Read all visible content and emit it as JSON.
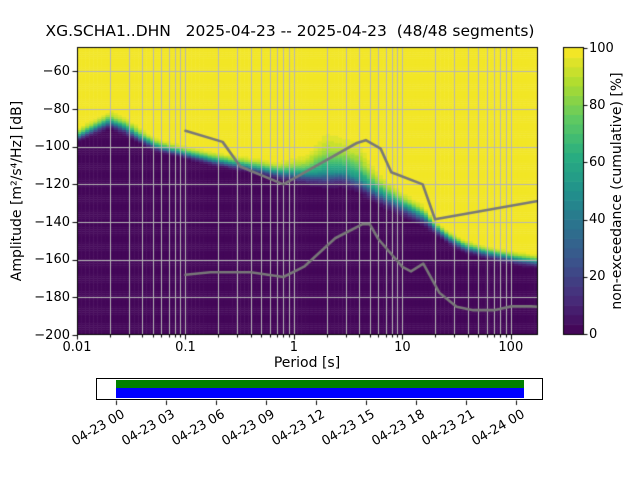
{
  "title": {
    "text": "XG.SCHA1..DHN   2025-04-23 -- 2025-04-23  (48/48 segments)",
    "station": "XG.SCHA1..DHN",
    "date_range": "2025-04-23 -- 2025-04-23",
    "segments": "48/48 segments"
  },
  "axes": {
    "xlabel": "Period [s]",
    "ylabel": "Amplitude [m²/s⁴/Hz] [dB]",
    "x_ticks": [
      {
        "value": 0.01,
        "label": "0.01"
      },
      {
        "value": 0.1,
        "label": "0.1"
      },
      {
        "value": 1,
        "label": "1"
      },
      {
        "value": 10,
        "label": "10"
      },
      {
        "value": 100,
        "label": "100"
      }
    ],
    "y_ticks": [
      {
        "value": -60,
        "label": "−60"
      },
      {
        "value": -80,
        "label": "−80"
      },
      {
        "value": -100,
        "label": "−100"
      },
      {
        "value": -120,
        "label": "−120"
      },
      {
        "value": -140,
        "label": "−140"
      },
      {
        "value": -160,
        "label": "−160"
      },
      {
        "value": -180,
        "label": "−180"
      },
      {
        "value": -200,
        "label": "−200"
      }
    ],
    "grid_color": "#b5b5b5",
    "spine_color": "#000000"
  },
  "colorbar": {
    "label": "non-exceedance (cumulative) [%]",
    "ticks": [
      {
        "value": 0,
        "label": "0"
      },
      {
        "value": 20,
        "label": "20"
      },
      {
        "value": 40,
        "label": "40"
      },
      {
        "value": 60,
        "label": "60"
      },
      {
        "value": 80,
        "label": "80"
      },
      {
        "value": 100,
        "label": "100"
      }
    ],
    "colormap": "viridis",
    "n_segments": 30
  },
  "timeline": {
    "tick_labels": [
      "04-23 00",
      "04-23 03",
      "04-23 06",
      "04-23 09",
      "04-23 12",
      "04-23 15",
      "04-23 18",
      "04-23 21",
      "04-24 00"
    ],
    "coverage_bar": {
      "green": "#008000",
      "blue": "#0000ff"
    }
  },
  "chart_data": {
    "type": "heatmap",
    "title": "XG.SCHA1..DHN 2025-04-23 -- 2025-04-23 (48/48 segments)",
    "xlabel": "Period [s]",
    "ylabel": "Amplitude [m^2/s^4/Hz] [dB]",
    "zlabel": "non-exceedance (cumulative) [%]",
    "x_scale": "log",
    "xlim": [
      0.01,
      178
    ],
    "ylim": [
      -200,
      -47
    ],
    "zlim": [
      0,
      100
    ],
    "grid": true,
    "colormap": "viridis",
    "period_bins_per_octave": 8,
    "db_bin_width": 1,
    "ppsd_cumulative_profile": {
      "description": "Per log10(period): median PSD level [dB] and lower/upper gaussian spreads [dB] of the cumulative (non-exceedance) distribution; color = CDF value through viridis.",
      "anchors_lp_median_slo_shi": [
        [
          -2.0,
          -94.5,
          1.6,
          2.2
        ],
        [
          -1.85,
          -90.5,
          1.9,
          2.6
        ],
        [
          -1.7,
          -86.5,
          2.2,
          3.0
        ],
        [
          -1.55,
          -90.0,
          2.2,
          3.0
        ],
        [
          -1.4,
          -95.5,
          1.9,
          2.6
        ],
        [
          -1.25,
          -100.0,
          1.6,
          2.2
        ],
        [
          -1.0,
          -103.5,
          1.6,
          2.2
        ],
        [
          -0.75,
          -107.0,
          1.7,
          2.4
        ],
        [
          -0.45,
          -110.0,
          1.8,
          2.6
        ],
        [
          -0.15,
          -113.5,
          2.4,
          2.9
        ],
        [
          0.12,
          -114.5,
          3.2,
          5.5
        ],
        [
          0.3,
          -114.0,
          4.3,
          11.5
        ],
        [
          0.45,
          -113.5,
          4.3,
          10.0
        ],
        [
          0.6,
          -117.0,
          4.3,
          10.0
        ],
        [
          0.75,
          -123.0,
          3.8,
          6.0
        ],
        [
          0.9,
          -128.0,
          3.5,
          4.5
        ],
        [
          1.05,
          -132.5,
          3.2,
          3.6
        ],
        [
          1.2,
          -137.0,
          3.0,
          3.2
        ],
        [
          1.29,
          -142.0,
          2.2,
          2.0
        ],
        [
          1.43,
          -148.5,
          2.0,
          2.1
        ],
        [
          1.57,
          -153.0,
          1.9,
          2.0
        ],
        [
          1.72,
          -155.5,
          1.9,
          2.0
        ],
        [
          1.88,
          -157.5,
          1.9,
          2.0
        ],
        [
          2.05,
          -159.5,
          1.9,
          2.0
        ],
        [
          2.25,
          -161.0,
          1.9,
          2.0
        ]
      ]
    },
    "noise_models": {
      "name": "Peterson (1993) NHNM / NLNM reference curves",
      "color": "#787878",
      "nhnm": [
        [
          0.1,
          -91.5
        ],
        [
          0.22,
          -97.4
        ],
        [
          0.32,
          -110.5
        ],
        [
          0.8,
          -120.0
        ],
        [
          3.8,
          -98.0
        ],
        [
          4.6,
          -96.5
        ],
        [
          6.3,
          -101.0
        ],
        [
          7.9,
          -113.5
        ],
        [
          15.4,
          -120.0
        ],
        [
          20.0,
          -138.5
        ],
        [
          178,
          -128.8
        ]
      ],
      "nlnm": [
        [
          0.1,
          -168.0
        ],
        [
          0.17,
          -166.7
        ],
        [
          0.4,
          -166.7
        ],
        [
          0.8,
          -169.2
        ],
        [
          1.24,
          -163.7
        ],
        [
          2.4,
          -148.6
        ],
        [
          4.3,
          -141.1
        ],
        [
          5.0,
          -141.1
        ],
        [
          6.0,
          -149.0
        ],
        [
          10.0,
          -163.8
        ],
        [
          12.0,
          -166.2
        ],
        [
          15.6,
          -162.1
        ],
        [
          21.9,
          -177.5
        ],
        [
          31.6,
          -185.0
        ],
        [
          45.0,
          -186.8
        ],
        [
          70.0,
          -186.8
        ],
        [
          101.0,
          -184.8
        ],
        [
          154.0,
          -184.8
        ],
        [
          178,
          -185.0
        ]
      ]
    }
  }
}
